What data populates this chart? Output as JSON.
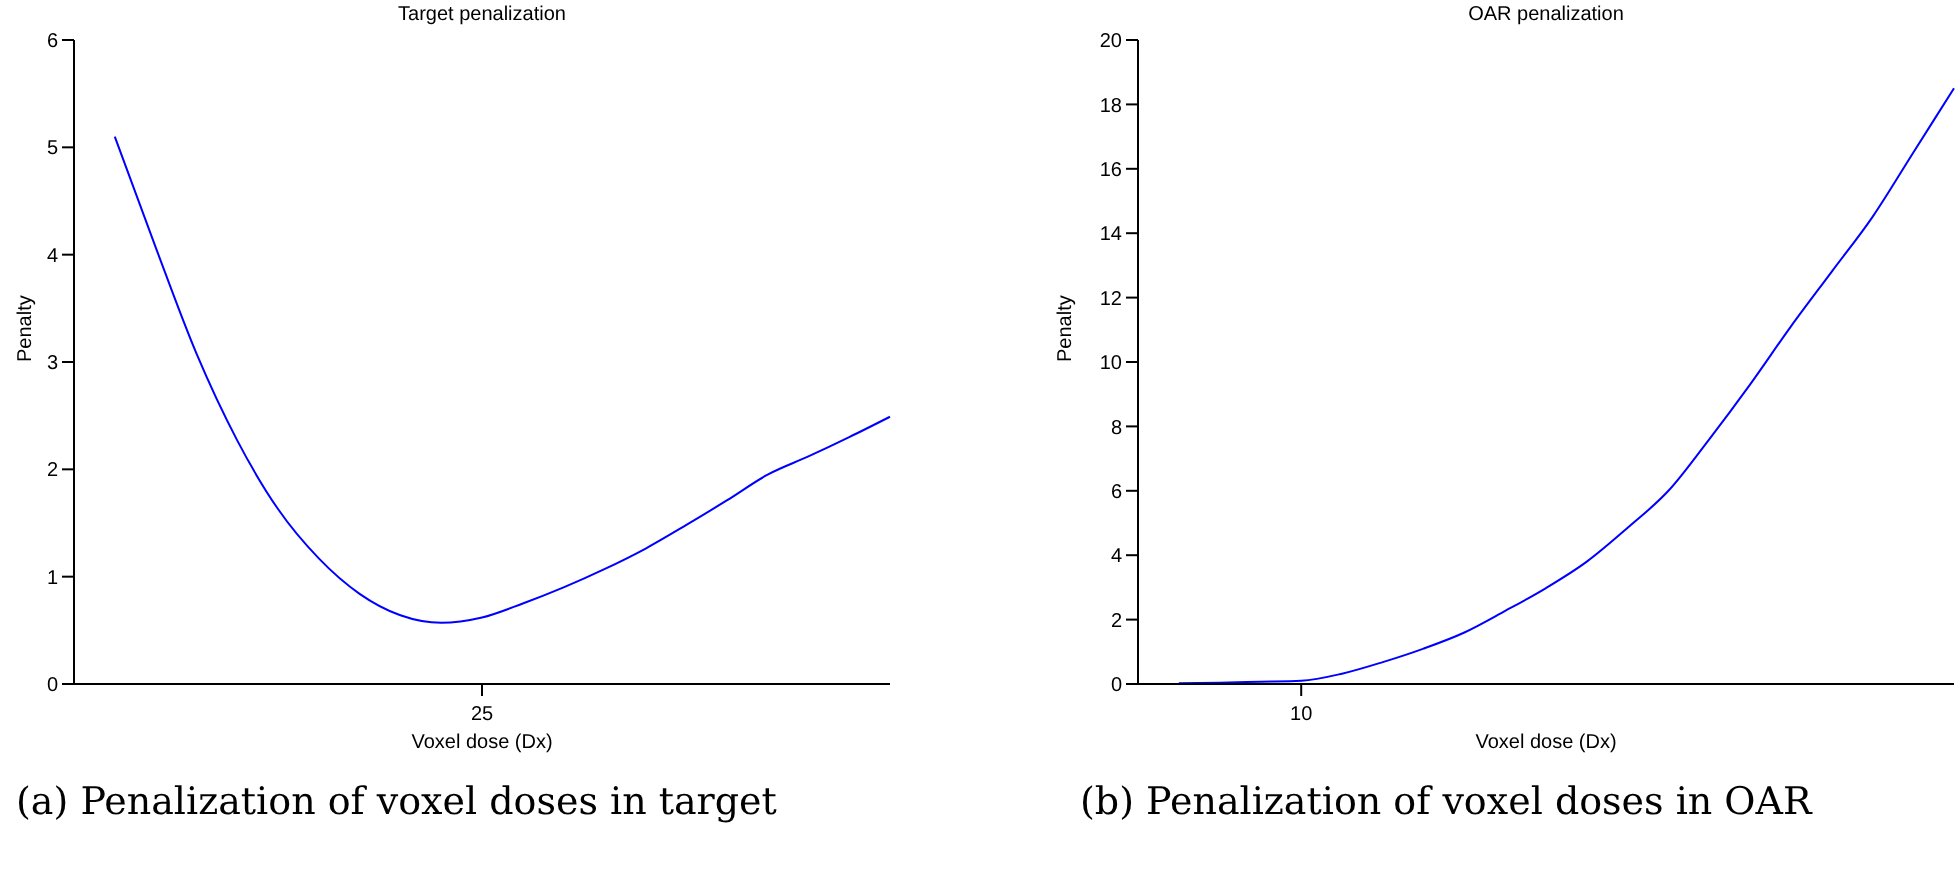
{
  "chart_data": [
    {
      "type": "line",
      "title": "Target penalization",
      "xlabel": "Voxel dose (Dx)",
      "ylabel": "Penalty",
      "annotations": [
        "(a) Penalization of voxel doses in target"
      ],
      "categories": [
        null,
        null,
        null,
        null,
        null,
        null,
        null,
        null,
        null,
        null,
        "25",
        null,
        null,
        null,
        null,
        null,
        null,
        null,
        null,
        null,
        null
      ],
      "series": [
        {
          "color": "#0000ff",
          "values": [
            null,
            5.1,
            4.07,
            3.08,
            2.27,
            1.63,
            1.17,
            0.84,
            0.64,
            0.57,
            0.62,
            0.75,
            0.9,
            1.07,
            1.26,
            1.48,
            1.71,
            1.95,
            2.12,
            2.3,
            2.49
          ]
        }
      ],
      "ylim": [
        0,
        6
      ],
      "yticks": [
        0,
        1,
        2,
        3,
        4,
        5,
        6
      ]
    },
    {
      "type": "line",
      "title": "OAR penalization",
      "xlabel": "Voxel dose (Dx)",
      "ylabel": "Penalty",
      "annotations": [
        "(b) Penalization of voxel doses in OAR"
      ],
      "categories": [
        null,
        null,
        null,
        null,
        "10",
        null,
        null,
        null,
        null,
        null,
        null,
        null,
        null,
        null,
        null,
        null,
        null,
        null,
        null,
        null,
        null
      ],
      "series": [
        {
          "color": "#0000ff",
          "values": [
            null,
            0.02,
            0.04,
            0.07,
            0.1,
            0.32,
            0.68,
            1.1,
            1.6,
            2.27,
            2.98,
            3.8,
            4.85,
            6.0,
            7.6,
            9.3,
            11.1,
            12.8,
            14.5,
            16.5,
            18.5
          ]
        }
      ],
      "ylim": [
        0,
        20
      ],
      "yticks": [
        0,
        2,
        4,
        6,
        8,
        10,
        12,
        14,
        16,
        18,
        20
      ]
    }
  ]
}
